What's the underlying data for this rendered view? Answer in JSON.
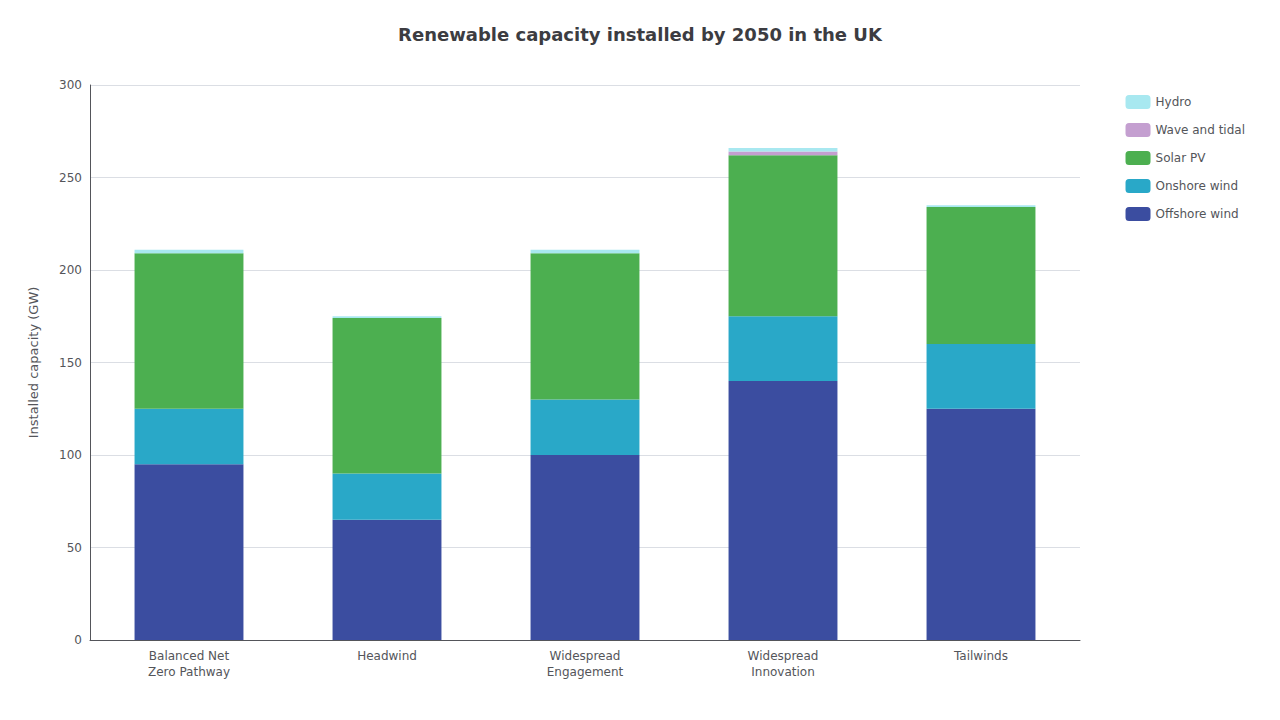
{
  "chart_data": {
    "type": "bar",
    "stacked": true,
    "title": "Renewable capacity installed by 2050 in the UK",
    "ylabel": "Installed capacity (GW)",
    "categories": [
      "Balanced Net\nZero Pathway",
      "Headwind",
      "Widespread\nEngagement",
      "Widespread\nInnovation",
      "Tailwinds"
    ],
    "series": [
      {
        "name": "Offshore wind",
        "color": "#3B4DA0",
        "values": [
          95,
          65,
          100,
          140,
          125
        ]
      },
      {
        "name": "Onshore wind",
        "color": "#29A8C8",
        "values": [
          30,
          25,
          30,
          35,
          35
        ]
      },
      {
        "name": "Solar PV",
        "color": "#4CAF50",
        "values": [
          84,
          84,
          79,
          87,
          74
        ]
      },
      {
        "name": "Wave and tidal",
        "color": "#C49FD0",
        "values": [
          0,
          0,
          0,
          2,
          0
        ]
      },
      {
        "name": "Hydro",
        "color": "#A8E8F0",
        "values": [
          2,
          1,
          2,
          2,
          1
        ]
      }
    ],
    "ylim": [
      0,
      300
    ],
    "yticks": [
      0,
      50,
      100,
      150,
      200,
      250,
      300
    ],
    "grid": true,
    "legend": "right"
  }
}
